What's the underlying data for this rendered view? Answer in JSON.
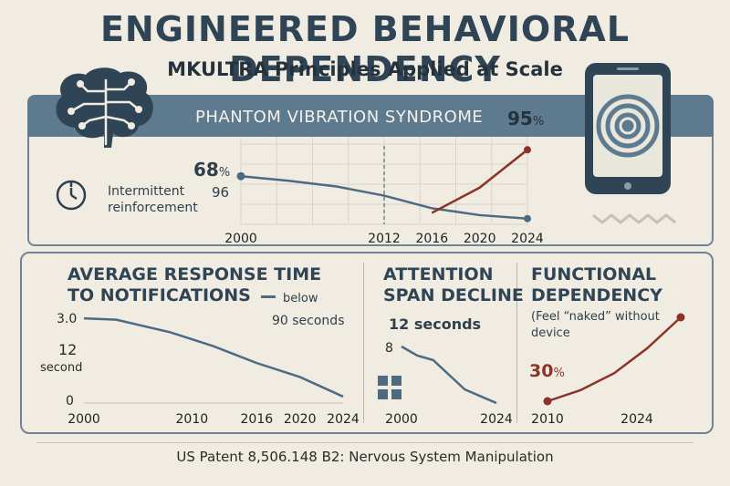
{
  "header": {
    "title": "ENGINEERED BEHAVIORAL DEPENDENCY",
    "subtitle": "MKULTRA Principles Applied at Scale"
  },
  "banner": {
    "label": "PHANTOM VIBRATION SYNDROME",
    "value": "95",
    "unit": "%"
  },
  "top_panel": {
    "value_label": "68",
    "value_unit": "%",
    "axis_value": "96",
    "icon_caption_1": "Intermittent",
    "icon_caption_2": "reinforcement"
  },
  "response_panel": {
    "heading_1": "AVERAGE RESPONSE TIME",
    "heading_2": "TO NOTIFICATIONS",
    "note_1": "below",
    "note_2": "90 seconds",
    "y_top": "3.0",
    "y_mid": "12",
    "y_mid_label": "second",
    "y_bottom": "0"
  },
  "attention_panel": {
    "heading_1": "ATTENTION",
    "heading_2": "SPAN DECLINE",
    "value_label": "12 seconds",
    "y_top": "8"
  },
  "dependency_panel": {
    "heading_1": "FUNCTIONAL",
    "heading_2": "DEPENDENCY",
    "note_1": "(Feel “naked” without",
    "note_2": "device",
    "value": "30",
    "unit": "%"
  },
  "footer": {
    "patent": "US Patent 8,506.148 B2: Nervous System Manipulation"
  },
  "colors": {
    "slate": "#5e7a8f",
    "navy": "#2f4556",
    "red": "#8b3328",
    "background": "#f0ece1"
  },
  "icons": [
    "brain-circuit-icon",
    "timer-icon",
    "smartphone-spiral-icon",
    "grid-squares-icon"
  ],
  "chart_data": [
    {
      "type": "line",
      "x_ticks": [
        "2000",
        "2012",
        "2016",
        "2020",
        "2024"
      ],
      "x": [
        2000,
        2024
      ],
      "series": [
        {
          "x": [
            2000,
            2004,
            2008,
            2012,
            2016,
            2020,
            2024
          ],
          "values": [
            72,
            68,
            63,
            55,
            44,
            38,
            35
          ]
        },
        {
          "x": [
            2016,
            2020,
            2024
          ],
          "values": [
            40,
            62,
            95
          ]
        }
      ],
      "grid": true
    },
    {
      "type": "line",
      "x_ticks": [
        "2000",
        "2010",
        "2016",
        "2020",
        "2024"
      ],
      "y_ticks": [
        "3.0",
        "12",
        "0"
      ],
      "series": [
        {
          "x": [
            2000,
            2003,
            2008,
            2012,
            2016,
            2020,
            2024
          ],
          "values": [
            2.9,
            2.85,
            2.4,
            1.9,
            1.3,
            0.8,
            0.1
          ]
        }
      ]
    },
    {
      "type": "line",
      "x_ticks": [
        "2000",
        "2024"
      ],
      "series": [
        {
          "x": [
            2000,
            2004,
            2008,
            2012,
            2016,
            2020,
            2024
          ],
          "values": [
            8,
            7.2,
            6.8,
            5.5,
            4.2,
            3.6,
            3.0
          ]
        }
      ]
    },
    {
      "type": "line",
      "x_ticks": [
        "2010",
        "2024"
      ],
      "series": [
        {
          "x": [
            2010,
            2014,
            2018,
            2022,
            2026
          ],
          "values": [
            10,
            18,
            30,
            48,
            70
          ]
        }
      ]
    }
  ]
}
